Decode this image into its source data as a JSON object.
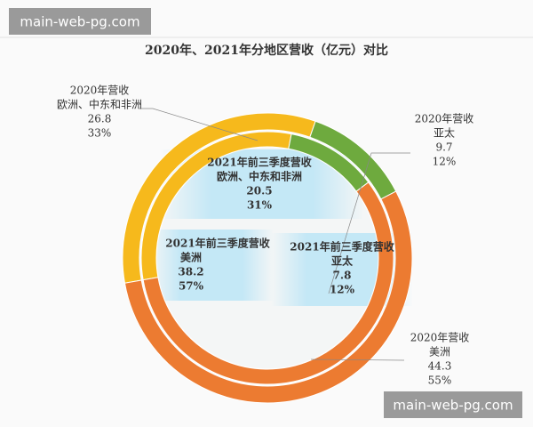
{
  "watermarks": [
    "main-web-pg.com",
    "main-web-pg.com"
  ],
  "chart_data": {
    "type": "donut",
    "title": "2020年、2021年分地区营收（亿元）对比",
    "categories": [
      "欧洲、中东和非洲",
      "亚太",
      "美洲"
    ],
    "colors": [
      "#f6b91c",
      "#6eaa3e",
      "#ec7b31"
    ],
    "series": [
      {
        "name": "2020年营收",
        "values": [
          26.8,
          9.7,
          44.3
        ],
        "share_labels": [
          "33%",
          "12%",
          "55%"
        ]
      },
      {
        "name": "2021年前三季度营收",
        "values": [
          20.5,
          7.8,
          38.2
        ],
        "share_labels": [
          "31%",
          "12%",
          "57%"
        ]
      }
    ]
  }
}
